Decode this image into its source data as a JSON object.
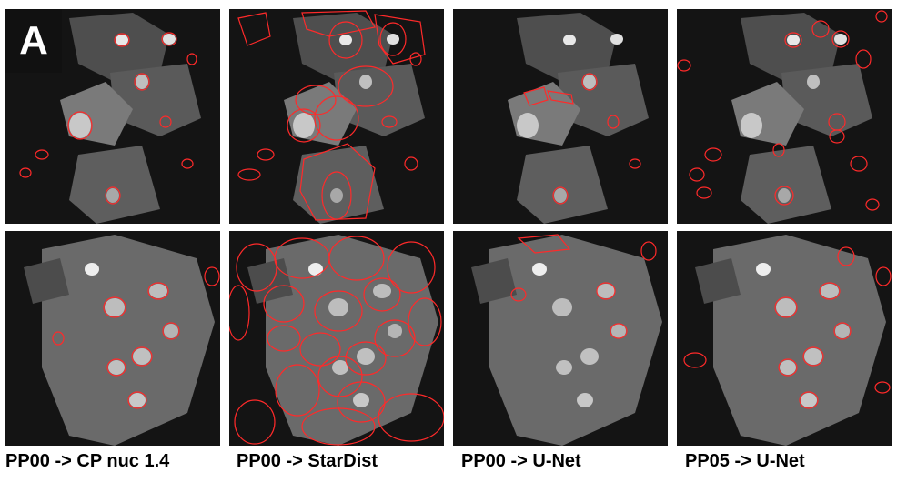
{
  "panel_label": "A",
  "columns": [
    {
      "caption": "PP00 -> CP nuc 1.4"
    },
    {
      "caption": "PP00 -> StarDist"
    },
    {
      "caption": "PP00 -> U-Net"
    },
    {
      "caption": "PP05 -> U-Net"
    }
  ],
  "colors": {
    "background": "#ffffff",
    "image_bg": "#1a1a1a",
    "cell": "#6e6e6e",
    "nucleus": "#d8d8d8",
    "contour": "#ff2a2a"
  }
}
